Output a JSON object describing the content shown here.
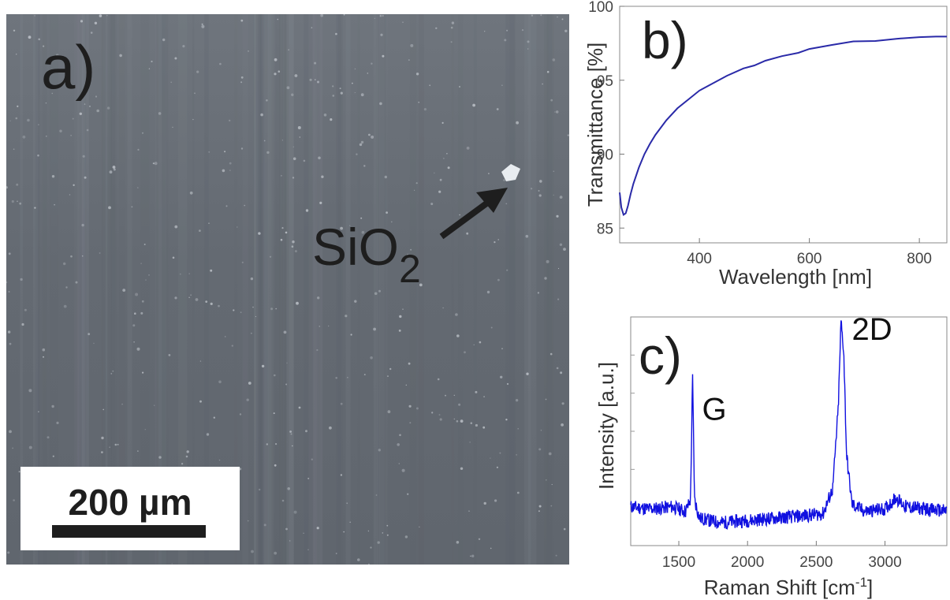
{
  "panel_a": {
    "letter": "a)",
    "annotation_main": "SiO",
    "annotation_sub": "2",
    "scale_label": "200 µm"
  },
  "chart_data": [
    {
      "panel": "b)",
      "type": "line",
      "title": "",
      "xlabel": "Wavelength [nm]",
      "ylabel": "Transmittance [%]",
      "xlim": [
        255,
        850
      ],
      "ylim": [
        84,
        100
      ],
      "xticks": [
        400,
        600,
        800
      ],
      "yticks": [
        85,
        90,
        95,
        100
      ],
      "grid": false,
      "color": "#2a2aa8",
      "series": [
        {
          "x": [
            255,
            258,
            262,
            266,
            270,
            275,
            280,
            290,
            300,
            310,
            320,
            340,
            360,
            380,
            400,
            420,
            450,
            480,
            500,
            520,
            550,
            580,
            600,
            640,
            680,
            720,
            760,
            800,
            830,
            850
          ],
          "y": [
            87.4,
            86.4,
            85.9,
            86.0,
            86.5,
            87.3,
            88.0,
            89.1,
            90.0,
            90.7,
            91.3,
            92.3,
            93.1,
            93.7,
            94.3,
            94.7,
            95.3,
            95.8,
            96.0,
            96.3,
            96.6,
            96.9,
            97.1,
            97.4,
            97.6,
            97.7,
            97.8,
            97.9,
            97.95,
            98.0
          ]
        }
      ]
    },
    {
      "panel": "c)",
      "type": "line",
      "title": "",
      "xlabel": "Raman Shift [cm",
      "xlabel_sup": "-1",
      "xlabel_end": "]",
      "ylabel": "Intensity [a.u.]",
      "xlim": [
        1150,
        3450
      ],
      "ylim": [
        0,
        1
      ],
      "xticks": [
        1500,
        2000,
        2500,
        3000
      ],
      "grid": false,
      "color": "#1010e0",
      "annotations": [
        {
          "text": "G",
          "x": 1600
        },
        {
          "text": "2D",
          "x": 2690
        }
      ],
      "series": [
        {
          "x": [
            1150,
            1300,
            1450,
            1550,
            1585,
            1600,
            1615,
            1650,
            1800,
            2000,
            2200,
            2400,
            2550,
            2620,
            2660,
            2680,
            2700,
            2720,
            2760,
            2850,
            3000,
            3080,
            3150,
            3300,
            3450
          ],
          "y": [
            0.17,
            0.16,
            0.17,
            0.15,
            0.2,
            0.73,
            0.2,
            0.12,
            0.1,
            0.11,
            0.12,
            0.13,
            0.14,
            0.25,
            0.6,
            0.98,
            0.85,
            0.4,
            0.18,
            0.15,
            0.16,
            0.21,
            0.17,
            0.16,
            0.15
          ]
        }
      ]
    }
  ]
}
